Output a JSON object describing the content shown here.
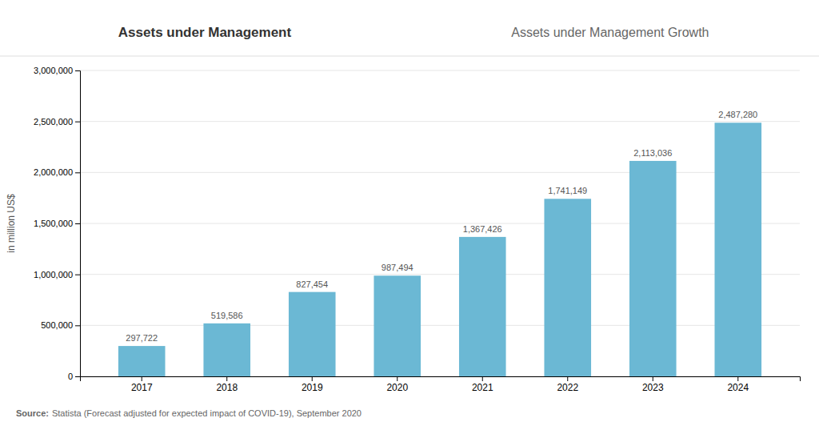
{
  "chart_data": {
    "type": "bar",
    "title": "Assets under Management",
    "subtitle": "Assets under Management Growth",
    "ylabel": "in million US$",
    "annotations": [
      "Source:",
      "Statista (Forecast adjusted for expected impact of COVID-19), September 2020"
    ],
    "categories": [
      "2017",
      "2018",
      "2019",
      "2020",
      "2021",
      "2022",
      "2023",
      "2024"
    ],
    "values": [
      297722,
      519586,
      827454,
      987494,
      1367426,
      1741149,
      2113036,
      2487280
    ],
    "value_labels": [
      "297,722",
      "519,586",
      "827,454",
      "987,494",
      "1,367,426",
      "1,741,149",
      "2,113,036",
      "2,487,280"
    ],
    "data_labels": true,
    "color": "#6bb8d4",
    "ylim": [
      0,
      3000000
    ],
    "yticks": [
      0,
      {
        "value": 500000,
        "label": "500,000"
      },
      {
        "value": 1000000,
        "label": "1,000,000"
      },
      {
        "value": 1500000,
        "label": "1,500,000"
      },
      {
        "value": 2000000,
        "label": "2,000,000"
      },
      {
        "value": 2500000,
        "label": "2,500,000"
      },
      {
        "value": 3000000,
        "label": "3,000,000"
      }
    ],
    "grid": true
  }
}
